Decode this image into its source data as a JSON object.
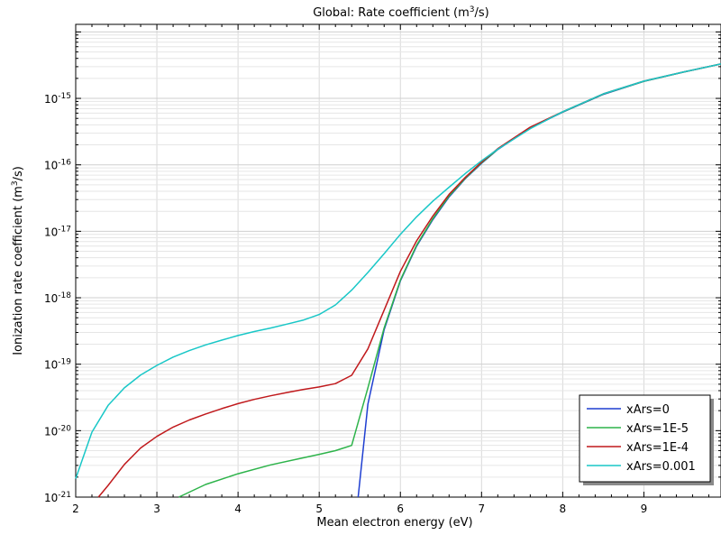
{
  "chart_data": {
    "type": "line",
    "title": "Global: Rate coefficient (m³/s)",
    "title_parts": [
      "Global: Rate coefficient (m",
      "3",
      "/s)"
    ],
    "xlabel": "Mean electron energy (eV)",
    "ylabel": "Ionization rate coefficient (m³/s)",
    "ylabel_parts": [
      "Ionization rate coefficient (m",
      "3",
      "/s)"
    ],
    "xlim": [
      2,
      9.95
    ],
    "ylim": [
      1e-21,
      1.3e-14
    ],
    "y_scale": "log",
    "grid": true,
    "legend_position": "bottom-right",
    "x_ticks": [
      2,
      3,
      4,
      5,
      6,
      7,
      8,
      9
    ],
    "y_ticks": [
      {
        "value": 1e-21,
        "base": "10",
        "exp": "-21"
      },
      {
        "value": 1e-20,
        "base": "10",
        "exp": "-20"
      },
      {
        "value": 1e-19,
        "base": "10",
        "exp": "-19"
      },
      {
        "value": 1e-18,
        "base": "10",
        "exp": "-18"
      },
      {
        "value": 1e-17,
        "base": "10",
        "exp": "-17"
      },
      {
        "value": 1e-16,
        "base": "10",
        "exp": "-16"
      },
      {
        "value": 1e-15,
        "base": "10",
        "exp": "-15"
      }
    ],
    "series": [
      {
        "name": "xArs=0",
        "color": "#1f3fd1",
        "x": [
          5.48,
          5.6,
          5.8,
          6.0,
          6.2,
          6.4,
          6.6,
          6.8,
          7.0,
          7.2,
          7.6,
          8.0,
          8.5,
          9.0,
          9.5,
          9.95
        ],
        "y": [
          1e-21,
          2.5e-20,
          3.3e-19,
          1.8e-18,
          6e-18,
          1.5e-17,
          3.3e-17,
          6.2e-17,
          1.05e-16,
          1.7e-16,
          3.6e-16,
          6.2e-16,
          1.15e-15,
          1.8e-15,
          2.5e-15,
          3.3e-15
        ]
      },
      {
        "name": "xArs=1E-5",
        "color": "#2db34a",
        "x": [
          3.27,
          3.6,
          4.0,
          4.4,
          4.8,
          5.0,
          5.2,
          5.4,
          5.6,
          5.8,
          6.0,
          6.2,
          6.4,
          6.6,
          6.8,
          7.0,
          7.2,
          7.6,
          8.0,
          8.5,
          9.0,
          9.5,
          9.95
        ],
        "y": [
          1e-21,
          1.55e-21,
          2.25e-21,
          3.05e-21,
          3.9e-21,
          4.4e-21,
          5e-21,
          6e-21,
          4.4e-20,
          3.5e-19,
          1.85e-18,
          6.2e-18,
          1.55e-17,
          3.4e-17,
          6.3e-17,
          1.07e-16,
          1.72e-16,
          3.65e-16,
          6.25e-16,
          1.16e-15,
          1.8e-15,
          2.5e-15,
          3.3e-15
        ]
      },
      {
        "name": "xArs=1E-4",
        "color": "#c0191c",
        "x": [
          2.28,
          2.4,
          2.6,
          2.8,
          3.0,
          3.2,
          3.4,
          3.6,
          3.8,
          4.0,
          4.2,
          4.4,
          4.6,
          4.8,
          5.0,
          5.2,
          5.4,
          5.6,
          5.8,
          6.0,
          6.2,
          6.4,
          6.6,
          6.8,
          7.0,
          7.2,
          7.6,
          8.0,
          8.5,
          9.0,
          9.5,
          9.95
        ],
        "y": [
          1e-21,
          1.5e-21,
          3.1e-21,
          5.5e-21,
          8.2e-21,
          1.13e-20,
          1.45e-20,
          1.78e-20,
          2.15e-20,
          2.55e-20,
          2.95e-20,
          3.35e-20,
          3.75e-20,
          4.15e-20,
          4.55e-20,
          5.1e-20,
          6.8e-20,
          1.7e-19,
          6.5e-19,
          2.5e-18,
          7.2e-18,
          1.7e-17,
          3.6e-17,
          6.5e-17,
          1.1e-16,
          1.75e-16,
          3.7e-16,
          6.3e-16,
          1.17e-15,
          1.82e-15,
          2.52e-15,
          3.3e-15
        ]
      },
      {
        "name": "xArs=0.001",
        "color": "#19c7c7",
        "x": [
          2.0,
          2.2,
          2.4,
          2.6,
          2.8,
          3.0,
          3.2,
          3.4,
          3.6,
          3.8,
          4.0,
          4.2,
          4.4,
          4.6,
          4.8,
          5.0,
          5.2,
          5.4,
          5.6,
          5.8,
          6.0,
          6.2,
          6.4,
          6.6,
          6.8,
          7.0,
          7.2,
          7.6,
          8.0,
          8.5,
          9.0,
          9.5,
          9.95
        ],
        "y": [
          1.9e-21,
          9.5e-21,
          2.4e-20,
          4.4e-20,
          6.9e-20,
          9.6e-20,
          1.28e-19,
          1.6e-19,
          1.95e-19,
          2.3e-19,
          2.7e-19,
          3.1e-19,
          3.5e-19,
          4e-19,
          4.6e-19,
          5.6e-19,
          7.8e-19,
          1.3e-18,
          2.4e-18,
          4.6e-18,
          9e-18,
          1.65e-17,
          2.85e-17,
          4.6e-17,
          7.4e-17,
          1.15e-16,
          1.72e-16,
          3.5e-16,
          6.3e-16,
          1.17e-15,
          1.82e-15,
          2.52e-15,
          3.3e-15
        ]
      }
    ]
  }
}
